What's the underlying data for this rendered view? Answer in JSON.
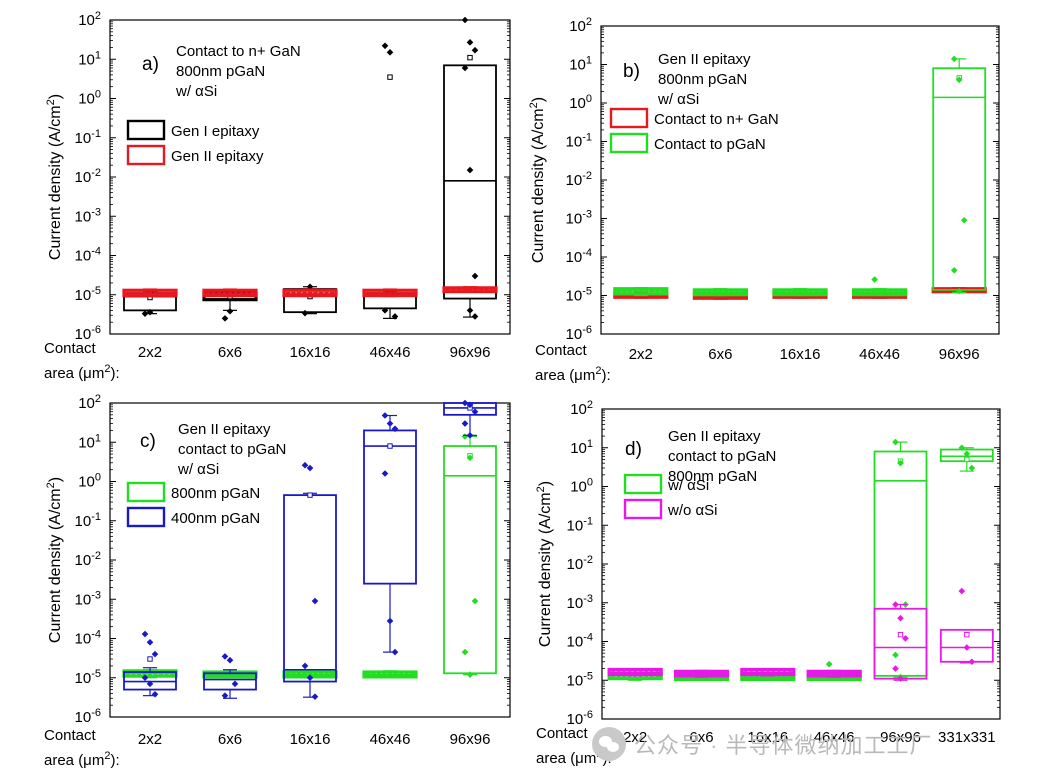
{
  "figure": {
    "watermark": "公众号 · 半导体微纳加工工厂"
  },
  "chart_data": [
    {
      "type": "box",
      "panel_label": "a)",
      "annotation": [
        "Contact to n+ GaN",
        "800nm pGaN",
        "w/ αSi"
      ],
      "ylabel": "Current density (A/cm²)",
      "yscale": "log",
      "ylim": [
        1e-06,
        100
      ],
      "xlabel": [
        "Contact",
        "area (μm²):"
      ],
      "categories": [
        "2x2",
        "6x6",
        "16x16",
        "46x46",
        "96x96"
      ],
      "legend": [
        {
          "name": "Gen I epitaxy",
          "color": "#000000"
        },
        {
          "name": "Gen II epitaxy",
          "color": "#e8191e"
        }
      ],
      "series": [
        {
          "name": "Gen I epitaxy",
          "color": "#000000",
          "boxes": [
            {
              "category": "2x2",
              "q1": 4e-06,
              "median": 9e-06,
              "q3": 1.1e-05,
              "whisker_low": 3.3e-06,
              "whisker_high": 1.2e-05,
              "mean": 8.5e-06,
              "points": [
                3.3e-06,
                3.6e-06,
                1.2e-05
              ]
            },
            {
              "category": "6x6",
              "q1": 7.5e-06,
              "median": 9.5e-06,
              "q3": 1.1e-05,
              "whisker_low": 4e-06,
              "whisker_high": 1.2e-05,
              "mean": 9e-06,
              "points": [
                2.5e-06,
                3.8e-06
              ]
            },
            {
              "category": "16x16",
              "q1": 3.6e-06,
              "median": 1e-05,
              "q3": 1.4e-05,
              "whisker_low": 3.3e-06,
              "whisker_high": 1.6e-05,
              "mean": 9e-06,
              "points": [
                3.4e-06,
                1.6e-05
              ]
            },
            {
              "category": "46x46",
              "q1": 4.5e-06,
              "median": 1e-05,
              "q3": 1.1e-05,
              "whisker_low": 2.5e-06,
              "whisker_high": 1.2e-05,
              "mean": 3.5,
              "points": [
                22,
                15,
                2.8e-06,
                4e-06
              ]
            },
            {
              "category": "96x96",
              "q1": 8e-06,
              "median": 0.008,
              "q3": 7,
              "whisker_low": 2.7e-06,
              "whisker_high": 7,
              "mean": 11,
              "points": [
                100,
                27,
                17,
                6,
                0.015,
                3e-05,
                1.4e-05,
                4e-06,
                2.8e-06
              ]
            }
          ]
        },
        {
          "name": "Gen II epitaxy",
          "color": "#e8191e",
          "boxes": [
            {
              "category": "2x2",
              "q1": 9.5e-06,
              "median": 1.1e-05,
              "q3": 1.3e-05,
              "whisker_low": 9e-06,
              "whisker_high": 1.4e-05
            },
            {
              "category": "6x6",
              "q1": 9.5e-06,
              "median": 1.1e-05,
              "q3": 1.3e-05,
              "whisker_low": 9e-06,
              "whisker_high": 1.4e-05
            },
            {
              "category": "16x16",
              "q1": 9.5e-06,
              "median": 1.1e-05,
              "q3": 1.3e-05,
              "whisker_low": 9e-06,
              "whisker_high": 1.4e-05
            },
            {
              "category": "46x46",
              "q1": 9.5e-06,
              "median": 1.1e-05,
              "q3": 1.3e-05,
              "whisker_low": 9e-06,
              "whisker_high": 1.4e-05
            },
            {
              "category": "96x96",
              "q1": 1.2e-05,
              "median": 1.4e-05,
              "q3": 1.5e-05,
              "whisker_low": 1.2e-05,
              "whisker_high": 1.6e-05
            }
          ]
        }
      ]
    },
    {
      "type": "box",
      "panel_label": "b)",
      "annotation": [
        "Gen II epitaxy",
        "800nm pGaN",
        "w/ αSi"
      ],
      "ylabel": "Current density (A/cm²)",
      "yscale": "log",
      "ylim": [
        1e-06,
        100
      ],
      "xlabel": [
        "Contact",
        "area (μm²):"
      ],
      "categories": [
        "2x2",
        "6x6",
        "16x16",
        "46x46",
        "96x96"
      ],
      "legend": [
        {
          "name": "Contact to n+ GaN",
          "color": "#e8191e"
        },
        {
          "name": "Contact to pGaN",
          "color": "#22dd22"
        }
      ],
      "series": [
        {
          "name": "Contact to n+ GaN",
          "color": "#e8191e",
          "boxes": [
            {
              "category": "2x2",
              "q1": 9e-06,
              "median": 1e-05,
              "q3": 1.1e-05,
              "whisker_low": 8.5e-06,
              "whisker_high": 1.2e-05
            },
            {
              "category": "6x6",
              "q1": 8.5e-06,
              "median": 9.5e-06,
              "q3": 1.05e-05,
              "whisker_low": 8e-06,
              "whisker_high": 1.15e-05
            },
            {
              "category": "16x16",
              "q1": 9e-06,
              "median": 1e-05,
              "q3": 1.1e-05,
              "whisker_low": 8.5e-06,
              "whisker_high": 1.2e-05
            },
            {
              "category": "46x46",
              "q1": 9e-06,
              "median": 1e-05,
              "q3": 1.1e-05,
              "whisker_low": 8.5e-06,
              "whisker_high": 1.2e-05
            },
            {
              "category": "96x96",
              "q1": 1.3e-05,
              "median": 1.4e-05,
              "q3": 1.5e-05,
              "whisker_low": 1.2e-05,
              "whisker_high": 1.6e-05
            }
          ]
        },
        {
          "name": "Contact to pGaN",
          "color": "#22dd22",
          "boxes": [
            {
              "category": "2x2",
              "q1": 1.1e-05,
              "median": 1.3e-05,
              "q3": 1.5e-05,
              "whisker_low": 1e-05,
              "whisker_high": 1.6e-05
            },
            {
              "category": "6x6",
              "q1": 1.05e-05,
              "median": 1.2e-05,
              "q3": 1.4e-05,
              "whisker_low": 1e-05,
              "whisker_high": 1.5e-05
            },
            {
              "category": "16x16",
              "q1": 1.05e-05,
              "median": 1.2e-05,
              "q3": 1.4e-05,
              "whisker_low": 1e-05,
              "whisker_high": 1.5e-05
            },
            {
              "category": "46x46",
              "q1": 1.05e-05,
              "median": 1.2e-05,
              "q3": 1.4e-05,
              "whisker_low": 1e-05,
              "whisker_high": 1.5e-05,
              "points": [
                2.6e-05
              ]
            },
            {
              "category": "96x96",
              "q1": 1.4e-05,
              "median": 1.4,
              "q3": 8,
              "whisker_low": 1.2e-05,
              "whisker_high": 14,
              "mean": 4.5,
              "points": [
                14,
                4,
                0.0009,
                4.5e-05,
                1.3e-05
              ]
            }
          ]
        }
      ]
    },
    {
      "type": "box",
      "panel_label": "c)",
      "annotation": [
        "Gen II epitaxy",
        "contact to pGaN",
        "w/ αSi"
      ],
      "ylabel": "Current density (A/cm²)",
      "yscale": "log",
      "ylim": [
        1e-06,
        100
      ],
      "xlabel": [
        "Contact",
        "area (μm²):"
      ],
      "categories": [
        "2x2",
        "6x6",
        "16x16",
        "46x46",
        "96x96"
      ],
      "legend": [
        {
          "name": "800nm pGaN",
          "color": "#22dd22"
        },
        {
          "name": "400nm pGaN",
          "color": "#1919c8"
        }
      ],
      "series": [
        {
          "name": "800nm pGaN",
          "color": "#22dd22",
          "boxes": [
            {
              "category": "2x2",
              "q1": 1.1e-05,
              "median": 1.3e-05,
              "q3": 1.5e-05,
              "whisker_low": 1e-05,
              "whisker_high": 1.6e-05
            },
            {
              "category": "6x6",
              "q1": 1.05e-05,
              "median": 1.2e-05,
              "q3": 1.4e-05,
              "whisker_low": 1e-05,
              "whisker_high": 1.5e-05
            },
            {
              "category": "16x16",
              "q1": 1.05e-05,
              "median": 1.2e-05,
              "q3": 1.4e-05,
              "whisker_low": 1e-05,
              "whisker_high": 1.5e-05
            },
            {
              "category": "46x46",
              "q1": 1.05e-05,
              "median": 1.2e-05,
              "q3": 1.4e-05,
              "whisker_low": 1e-05,
              "whisker_high": 1.5e-05
            },
            {
              "category": "96x96",
              "q1": 1.3e-05,
              "median": 1.4,
              "q3": 8,
              "whisker_low": 1.2e-05,
              "whisker_high": 14,
              "mean": 4.5,
              "points": [
                14,
                4,
                0.0009,
                4.5e-05,
                1.2e-05
              ]
            }
          ]
        },
        {
          "name": "400nm pGaN",
          "color": "#1919c8",
          "boxes": [
            {
              "category": "2x2",
              "q1": 5e-06,
              "median": 8e-06,
              "q3": 1.4e-05,
              "whisker_low": 3.5e-06,
              "whisker_high": 1.8e-05,
              "mean": 3e-05,
              "points": [
                0.00013,
                8e-05,
                4e-05,
                1e-05,
                7e-06,
                3.8e-06
              ]
            },
            {
              "category": "6x6",
              "q1": 5e-06,
              "median": 9e-06,
              "q3": 1.3e-05,
              "whisker_low": 3e-06,
              "whisker_high": 1.6e-05,
              "points": [
                3.5e-05,
                2.8e-05,
                7e-06,
                3.5e-06
              ]
            },
            {
              "category": "16x16",
              "q1": 8e-06,
              "median": 1.6e-05,
              "q3": 0.45,
              "whisker_low": 3.2e-06,
              "whisker_high": 0.5,
              "mean": 0.45,
              "points": [
                2.6,
                2.2,
                0.0009,
                2e-05,
                1e-05,
                3.3e-06
              ]
            },
            {
              "category": "46x46",
              "q1": 0.0025,
              "median": 8,
              "q3": 20,
              "whisker_low": 4.5e-05,
              "whisker_high": 48,
              "mean": 8,
              "points": [
                48,
                30,
                22,
                1.6,
                0.00028,
                4.5e-05
              ]
            },
            {
              "category": "96x96",
              "q1": 50,
              "median": 75,
              "q3": 100,
              "whisker_low": 15,
              "whisker_high": 100,
              "mean": 75,
              "points": [
                100,
                90,
                60,
                30,
                15
              ]
            }
          ]
        }
      ]
    },
    {
      "type": "box",
      "panel_label": "d)",
      "annotation": [
        "Gen II epitaxy",
        "contact to pGaN",
        "800nm pGaN"
      ],
      "ylabel": "Current density (A/cm²)",
      "yscale": "log",
      "ylim": [
        1e-06,
        100
      ],
      "xlabel": [
        "Contact",
        "area (μm²):"
      ],
      "categories": [
        "2x2",
        "6x6",
        "16x16",
        "46x46",
        "96x96",
        "331x331"
      ],
      "legend": [
        {
          "name": "w/ αSi",
          "color": "#22dd22"
        },
        {
          "name": "w/o αSi",
          "color": "#e619e6"
        }
      ],
      "series": [
        {
          "name": "w/ αSi",
          "color": "#22dd22",
          "boxes": [
            {
              "category": "2x2",
              "q1": 1.1e-05,
              "median": 1.3e-05,
              "q3": 1.5e-05,
              "whisker_low": 1e-05,
              "whisker_high": 1.6e-05
            },
            {
              "category": "6x6",
              "q1": 1.05e-05,
              "median": 1.2e-05,
              "q3": 1.4e-05,
              "whisker_low": 1e-05,
              "whisker_high": 1.5e-05
            },
            {
              "category": "16x16",
              "q1": 1.05e-05,
              "median": 1.2e-05,
              "q3": 1.4e-05,
              "whisker_low": 1e-05,
              "whisker_high": 1.5e-05
            },
            {
              "category": "46x46",
              "q1": 1.05e-05,
              "median": 1.2e-05,
              "q3": 1.4e-05,
              "whisker_low": 1e-05,
              "whisker_high": 1.5e-05,
              "points": [
                2.6e-05
              ]
            },
            {
              "category": "96x96",
              "q1": 1.3e-05,
              "median": 1.4,
              "q3": 8,
              "whisker_low": 1.2e-05,
              "whisker_high": 14,
              "mean": 4.5,
              "points": [
                14,
                4,
                0.0009,
                4.5e-05,
                1.2e-05
              ]
            },
            {
              "category": "331x331",
              "q1": 4.5,
              "median": 6,
              "q3": 9,
              "whisker_low": 2.5,
              "whisker_high": 10,
              "mean": 5,
              "points": [
                10,
                7,
                3
              ]
            }
          ]
        },
        {
          "name": "w/o αSi",
          "color": "#e619e6",
          "boxes": [
            {
              "category": "2x2",
              "q1": 1.4e-05,
              "median": 1.6e-05,
              "q3": 1.9e-05,
              "whisker_low": 1.3e-05,
              "whisker_high": 2e-05
            },
            {
              "category": "6x6",
              "q1": 1.3e-05,
              "median": 1.5e-05,
              "q3": 1.7e-05,
              "whisker_low": 1.2e-05,
              "whisker_high": 1.8e-05
            },
            {
              "category": "16x16",
              "q1": 1.4e-05,
              "median": 1.6e-05,
              "q3": 1.9e-05,
              "whisker_low": 1.3e-05,
              "whisker_high": 2e-05
            },
            {
              "category": "46x46",
              "q1": 1.3e-05,
              "median": 1.5e-05,
              "q3": 1.7e-05,
              "whisker_low": 1.2e-05,
              "whisker_high": 1.8e-05
            },
            {
              "category": "96x96",
              "q1": 1.1e-05,
              "median": 7e-05,
              "q3": 0.0007,
              "whisker_low": 1e-05,
              "whisker_high": 0.0009,
              "mean": 0.00015,
              "points": [
                0.0009,
                0.0004,
                0.00012,
                2e-05,
                1.1e-05
              ]
            },
            {
              "category": "331x331",
              "q1": 3e-05,
              "median": 7e-05,
              "q3": 0.0002,
              "whisker_low": 2.8e-05,
              "whisker_high": 0.0002,
              "mean": 0.00015,
              "points": [
                0.002,
                7e-05,
                3e-05
              ]
            }
          ]
        }
      ]
    }
  ]
}
